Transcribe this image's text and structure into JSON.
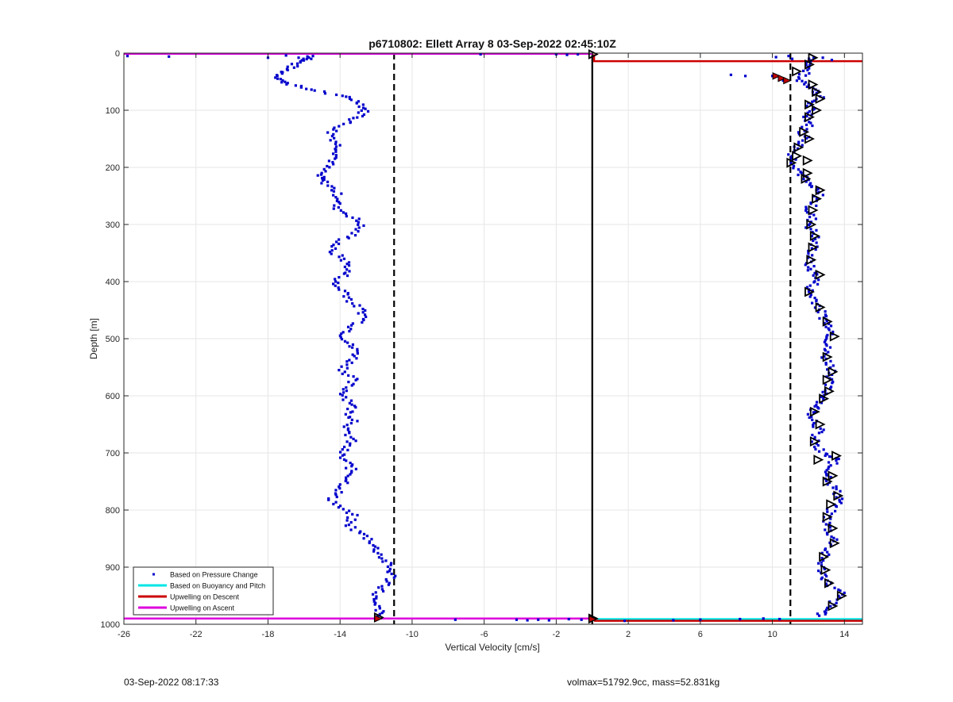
{
  "chart_data": {
    "type": "scatter",
    "title": "p6710802: Ellett Array 8 03-Sep-2022 02:45:10Z",
    "xlabel": "Vertical Velocity [cm/s]",
    "ylabel": "Depth [m]",
    "xlim": [
      -26,
      15
    ],
    "ylim": [
      0,
      1000
    ],
    "y_reversed": true,
    "grid": true,
    "legend_position": "bottom-left",
    "xticks": [
      -26,
      -22,
      -18,
      -14,
      -10,
      -6,
      -2,
      2,
      6,
      10,
      14
    ],
    "yticks": [
      0,
      100,
      200,
      300,
      400,
      500,
      600,
      700,
      800,
      900,
      1000
    ],
    "colors": {
      "pressure": "#0000cc",
      "buoyancy": "#00e5e5",
      "descent": "#cc0000",
      "ascent": "#dd00dd",
      "reference": "#000000"
    },
    "legend": [
      {
        "label": "Based on Pressure Change",
        "color": "#0000cc",
        "marker": "dot"
      },
      {
        "label": "Based on Buoyancy and Pitch",
        "color": "#00e5e5",
        "marker": "line"
      },
      {
        "label": "Upwelling on Descent",
        "color": "#cc0000",
        "marker": "line"
      },
      {
        "label": "Upwelling on Ascent",
        "color": "#dd00dd",
        "marker": "line"
      }
    ],
    "reference_lines": {
      "dashed_x": [
        -11,
        11
      ],
      "solid_x": 0
    },
    "ascent_profile": [
      [
        -15.5,
        5
      ],
      [
        -16,
        12
      ],
      [
        -16.5,
        20
      ],
      [
        -17,
        30
      ],
      [
        -17.4,
        40
      ],
      [
        -17.2,
        50
      ],
      [
        -16.4,
        58
      ],
      [
        -15.0,
        68
      ],
      [
        -13.5,
        78
      ],
      [
        -12.8,
        88
      ],
      [
        -12.6,
        100
      ],
      [
        -12.9,
        112
      ],
      [
        -13.8,
        125
      ],
      [
        -14.5,
        140
      ],
      [
        -14.2,
        155
      ],
      [
        -14.0,
        170
      ],
      [
        -14.3,
        185
      ],
      [
        -14.8,
        200
      ],
      [
        -15.2,
        215
      ],
      [
        -14.9,
        225
      ],
      [
        -14.3,
        240
      ],
      [
        -14.0,
        255
      ],
      [
        -14.3,
        270
      ],
      [
        -13.4,
        285
      ],
      [
        -12.8,
        300
      ],
      [
        -13.2,
        315
      ],
      [
        -14.0,
        330
      ],
      [
        -14.6,
        345
      ],
      [
        -13.8,
        360
      ],
      [
        -13.5,
        375
      ],
      [
        -13.8,
        390
      ],
      [
        -14.4,
        405
      ],
      [
        -13.6,
        420
      ],
      [
        -13.4,
        435
      ],
      [
        -12.8,
        450
      ],
      [
        -12.6,
        465
      ],
      [
        -13.3,
        480
      ],
      [
        -13.8,
        495
      ],
      [
        -13.5,
        510
      ],
      [
        -13.0,
        525
      ],
      [
        -13.4,
        540
      ],
      [
        -13.8,
        555
      ],
      [
        -13.3,
        570
      ],
      [
        -13.6,
        585
      ],
      [
        -13.8,
        600
      ],
      [
        -13.2,
        615
      ],
      [
        -13.5,
        630
      ],
      [
        -13.1,
        645
      ],
      [
        -13.8,
        660
      ],
      [
        -13.3,
        675
      ],
      [
        -13.7,
        690
      ],
      [
        -14.0,
        705
      ],
      [
        -13.5,
        720
      ],
      [
        -13.3,
        735
      ],
      [
        -13.6,
        750
      ],
      [
        -14.0,
        765
      ],
      [
        -14.5,
        780
      ],
      [
        -14.0,
        795
      ],
      [
        -13.3,
        810
      ],
      [
        -13.6,
        825
      ],
      [
        -12.9,
        840
      ],
      [
        -12.2,
        855
      ],
      [
        -12.0,
        870
      ],
      [
        -11.6,
        885
      ],
      [
        -11.3,
        900
      ],
      [
        -11.1,
        915
      ],
      [
        -11.4,
        930
      ],
      [
        -11.9,
        945
      ],
      [
        -12.3,
        960
      ],
      [
        -11.8,
        975
      ],
      [
        -11.9,
        988
      ]
    ],
    "ascent_surface_scatter": [
      [
        -25.8,
        5
      ],
      [
        -23.5,
        6
      ],
      [
        -18.0,
        8
      ],
      [
        -17.0,
        4
      ],
      [
        -16.3,
        8
      ],
      [
        -15.6,
        10
      ],
      [
        -6.2,
        2
      ],
      [
        -2.0,
        2
      ],
      [
        -1.4,
        3
      ],
      [
        -0.8,
        2
      ]
    ],
    "descent_profile": [
      [
        12.3,
        8
      ],
      [
        12.0,
        20
      ],
      [
        11.9,
        32
      ],
      [
        11.4,
        45
      ],
      [
        12.1,
        56
      ],
      [
        12.4,
        66
      ],
      [
        12.6,
        78
      ],
      [
        12.0,
        90
      ],
      [
        12.2,
        100
      ],
      [
        12.0,
        112
      ],
      [
        12.1,
        125
      ],
      [
        11.6,
        138
      ],
      [
        11.9,
        150
      ],
      [
        11.4,
        165
      ],
      [
        11.1,
        180
      ],
      [
        11.3,
        195
      ],
      [
        11.6,
        210
      ],
      [
        11.8,
        222
      ],
      [
        12.2,
        235
      ],
      [
        12.6,
        248
      ],
      [
        12.3,
        262
      ],
      [
        12.0,
        275
      ],
      [
        12.2,
        290
      ],
      [
        12.1,
        305
      ],
      [
        12.4,
        320
      ],
      [
        12.3,
        335
      ],
      [
        12.2,
        350
      ],
      [
        12.0,
        365
      ],
      [
        12.1,
        378
      ],
      [
        12.5,
        390
      ],
      [
        12.3,
        405
      ],
      [
        12.0,
        418
      ],
      [
        12.4,
        432
      ],
      [
        12.6,
        446
      ],
      [
        12.8,
        460
      ],
      [
        13.0,
        472
      ],
      [
        13.4,
        485
      ],
      [
        13.2,
        500
      ],
      [
        13.0,
        515
      ],
      [
        12.9,
        530
      ],
      [
        13.2,
        545
      ],
      [
        13.4,
        560
      ],
      [
        13.1,
        575
      ],
      [
        13.0,
        590
      ],
      [
        12.9,
        605
      ],
      [
        12.5,
        618
      ],
      [
        12.2,
        630
      ],
      [
        12.4,
        645
      ],
      [
        12.6,
        660
      ],
      [
        12.3,
        675
      ],
      [
        12.4,
        690
      ],
      [
        12.9,
        703
      ],
      [
        13.5,
        710
      ],
      [
        13.2,
        725
      ],
      [
        13.1,
        740
      ],
      [
        13.3,
        755
      ],
      [
        13.6,
        770
      ],
      [
        13.8,
        782
      ],
      [
        13.3,
        795
      ],
      [
        13.1,
        810
      ],
      [
        13.0,
        825
      ],
      [
        13.2,
        840
      ],
      [
        13.5,
        855
      ],
      [
        13.0,
        870
      ],
      [
        12.8,
        885
      ],
      [
        12.7,
        900
      ],
      [
        12.9,
        915
      ],
      [
        13.1,
        930
      ],
      [
        13.8,
        945
      ],
      [
        13.4,
        960
      ],
      [
        13.0,
        975
      ],
      [
        12.6,
        985
      ]
    ],
    "descent_surface_scatter": [
      [
        10.2,
        7
      ],
      [
        10.9,
        5
      ],
      [
        11.1,
        10
      ],
      [
        12.8,
        8
      ],
      [
        13.3,
        12
      ],
      [
        7.7,
        38
      ],
      [
        8.5,
        40
      ],
      [
        10.0,
        40
      ],
      [
        10.4,
        44
      ],
      [
        10.6,
        48
      ]
    ],
    "bottom_scatter": [
      [
        -7.6,
        992
      ],
      [
        -4.2,
        992
      ],
      [
        -3.6,
        993
      ],
      [
        -3.0,
        992
      ],
      [
        -2.4,
        993
      ],
      [
        -1.3,
        991
      ],
      [
        -0.6,
        992
      ],
      [
        1.8,
        994
      ],
      [
        4.5,
        993
      ],
      [
        6.0,
        992
      ],
      [
        8.2,
        991
      ],
      [
        9.5,
        990
      ],
      [
        10.4,
        991
      ]
    ],
    "descent_line": {
      "x_left": 0.1,
      "x_right": 15,
      "depth_surface": 2,
      "depth_top": 14,
      "depth_bottom": 994
    },
    "ascent_line": {
      "x_left": -26,
      "x_right": 0,
      "depth_surface": 1,
      "depth_bottom": 990
    },
    "buoyancy_line": {
      "x_left": 0,
      "x_right": 15,
      "depth": 991
    },
    "black_triangle_markers": [
      [
        12.2,
        8
      ],
      [
        12.0,
        20
      ],
      [
        11.3,
        32
      ],
      [
        12.2,
        55
      ],
      [
        12.4,
        68
      ],
      [
        12.6,
        80
      ],
      [
        12.0,
        90
      ],
      [
        12.4,
        100
      ],
      [
        12.0,
        112
      ],
      [
        11.7,
        138
      ],
      [
        12.0,
        150
      ],
      [
        11.4,
        165
      ],
      [
        11.3,
        180
      ],
      [
        11.9,
        188
      ],
      [
        11.0,
        192
      ],
      [
        11.9,
        210
      ],
      [
        11.8,
        220
      ],
      [
        12.6,
        240
      ],
      [
        12.4,
        255
      ],
      [
        12.2,
        275
      ],
      [
        12.1,
        300
      ],
      [
        12.3,
        320
      ],
      [
        12.2,
        340
      ],
      [
        12.1,
        362
      ],
      [
        12.6,
        388
      ],
      [
        12.0,
        418
      ],
      [
        12.6,
        445
      ],
      [
        13.0,
        470
      ],
      [
        13.4,
        496
      ],
      [
        13.0,
        532
      ],
      [
        13.3,
        558
      ],
      [
        13.0,
        572
      ],
      [
        13.1,
        592
      ],
      [
        12.8,
        605
      ],
      [
        12.3,
        628
      ],
      [
        12.6,
        650
      ],
      [
        12.3,
        680
      ],
      [
        12.5,
        712
      ],
      [
        13.5,
        705
      ],
      [
        13.3,
        740
      ],
      [
        13.0,
        750
      ],
      [
        13.6,
        775
      ],
      [
        13.2,
        790
      ],
      [
        13.0,
        812
      ],
      [
        13.3,
        832
      ],
      [
        13.4,
        858
      ],
      [
        12.8,
        882
      ],
      [
        12.9,
        905
      ],
      [
        13.1,
        928
      ],
      [
        13.8,
        950
      ],
      [
        13.3,
        968
      ],
      [
        -11.9,
        988
      ],
      [
        0,
        2
      ],
      [
        0,
        990
      ]
    ],
    "red_markers": [
      [
        10.2,
        40
      ],
      [
        10.5,
        44
      ],
      [
        10.8,
        48
      ],
      [
        0,
        991
      ],
      [
        -11.9,
        990
      ]
    ]
  },
  "footer": {
    "timestamp": "03-Sep-2022 08:17:33",
    "info": "volmax=51792.9cc, mass=52.831kg"
  }
}
